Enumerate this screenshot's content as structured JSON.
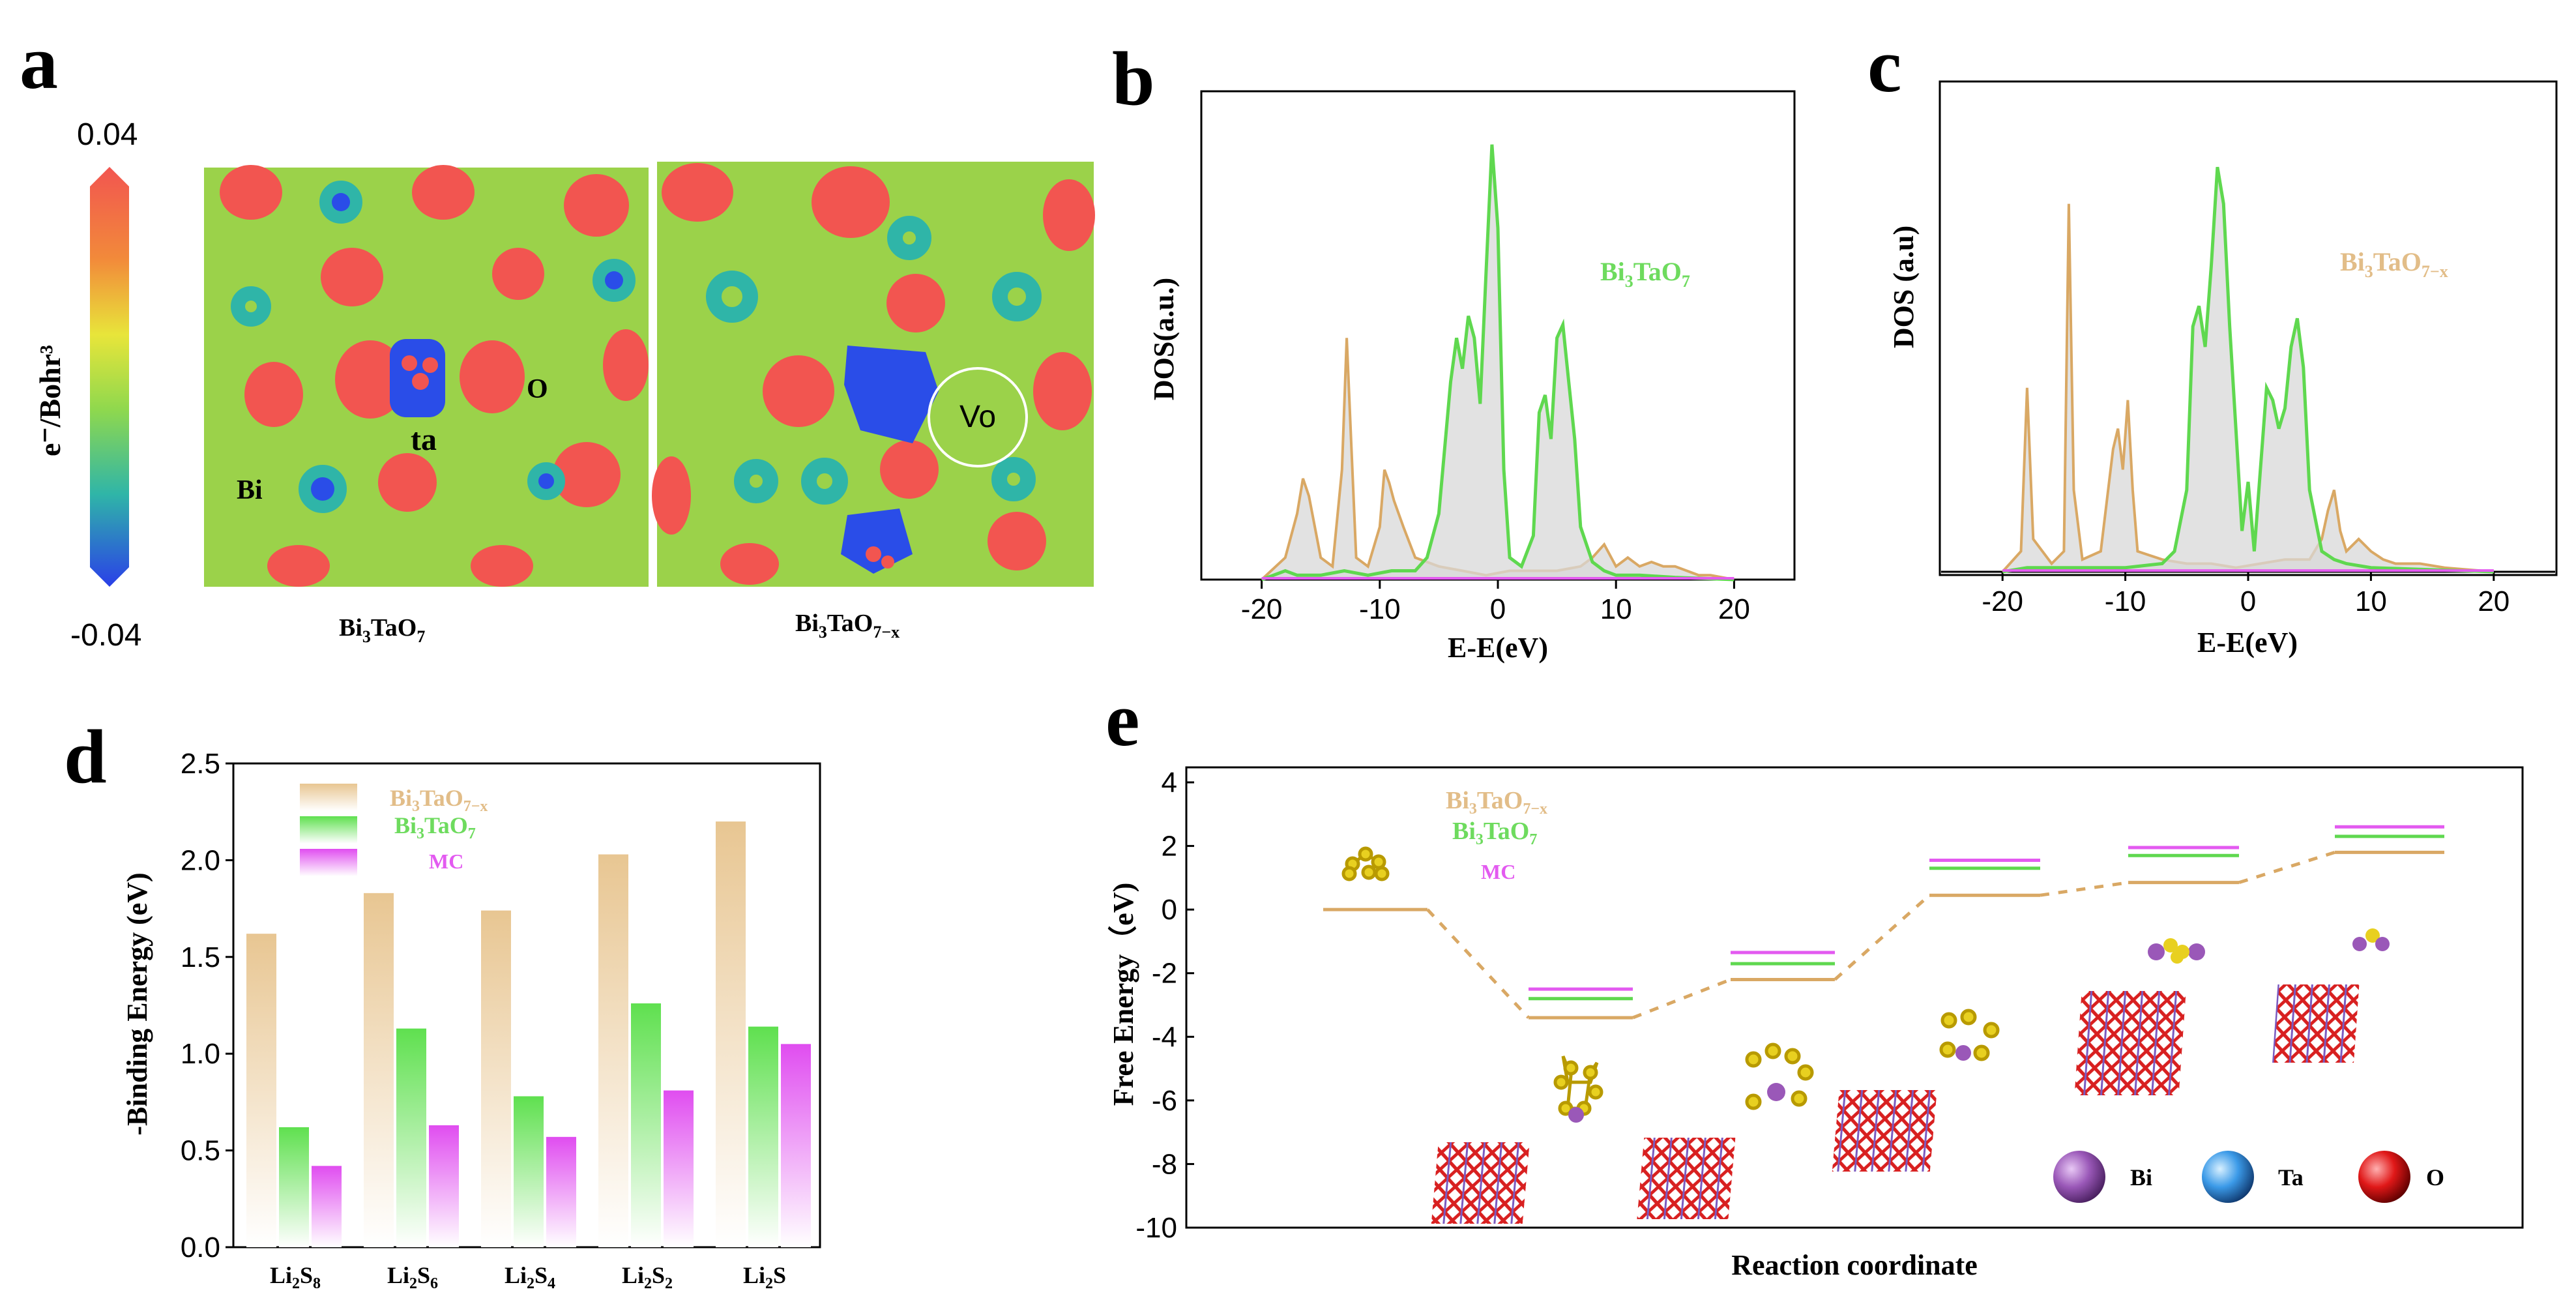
{
  "colors": {
    "tan": "#E2BD88",
    "tan_line": "#D9A864",
    "green": "#6EDB5E",
    "green_line": "#5FD84F",
    "magenta": "#E35AF0",
    "fill_gray": "#D8D8D8",
    "map_green": "#9BD24A",
    "map_red": "#F25550",
    "map_blue": "#2A4DE8",
    "bi": "#9A58B8",
    "ta": "#3B9AE8",
    "o": "#E01818"
  },
  "panel_a": {
    "label": "a",
    "cbar_max": "0.04",
    "cbar_min": "-0.04",
    "cbar_title": "e⁻/Bohr³",
    "map1_caption_main": "Bi",
    "map1_caption_sub1": "3",
    "map1_caption_mid": "TaO",
    "map1_caption_sub2": "7",
    "map2_caption_main": "Bi",
    "map2_caption_sub1": "3",
    "map2_caption_mid": "TaO",
    "map2_caption_sub2": "7−x",
    "atom_ta": "ta",
    "atom_o": "O",
    "atom_bi": "Bi",
    "vacancy": "Vo"
  },
  "chart_data": [
    {
      "panel": "b",
      "type": "line",
      "xlabel": "E-E(eV)",
      "ylabel": "DOS(a.u.)",
      "legend": "Bi3TaO7",
      "xlim": [
        -25,
        25
      ],
      "ylim": [
        0,
        1
      ],
      "xticks": [
        -20,
        -10,
        0,
        10,
        20
      ],
      "series": [
        {
          "name": "tan",
          "x": [
            -20,
            -18,
            -17,
            -16.5,
            -16,
            -15,
            -14,
            -13.2,
            -12.8,
            -12.4,
            -12,
            -11,
            -10,
            -9.6,
            -9.2,
            -8.8,
            -8,
            -7,
            -6,
            -5,
            -3,
            -1,
            1,
            3,
            5,
            7,
            8,
            9,
            10,
            11,
            12,
            13,
            14,
            15,
            16,
            17,
            18,
            20
          ],
          "y": [
            0,
            0.05,
            0.15,
            0.23,
            0.19,
            0.05,
            0.03,
            0.25,
            0.55,
            0.3,
            0.05,
            0.03,
            0.12,
            0.25,
            0.22,
            0.18,
            0.12,
            0.05,
            0.04,
            0.03,
            0.02,
            0.01,
            0.02,
            0.02,
            0.02,
            0.03,
            0.05,
            0.08,
            0.03,
            0.05,
            0.03,
            0.04,
            0.03,
            0.03,
            0.02,
            0.01,
            0.01,
            0
          ]
        },
        {
          "name": "green",
          "x": [
            -20,
            -19,
            -18,
            -17,
            -15,
            -13,
            -11,
            -9,
            -7,
            -6,
            -5,
            -4,
            -3.5,
            -3,
            -2.5,
            -2,
            -1.5,
            -1,
            -0.5,
            0,
            0.5,
            1,
            2,
            3,
            3.5,
            4,
            4.5,
            5,
            5.5,
            6,
            6.5,
            7,
            8,
            9,
            10,
            12,
            15,
            20
          ],
          "y": [
            0,
            0.01,
            0.02,
            0.01,
            0.01,
            0.02,
            0.01,
            0.02,
            0.02,
            0.05,
            0.15,
            0.45,
            0.55,
            0.48,
            0.6,
            0.55,
            0.4,
            0.7,
            0.99,
            0.8,
            0.25,
            0.05,
            0.03,
            0.1,
            0.38,
            0.42,
            0.32,
            0.55,
            0.58,
            0.45,
            0.32,
            0.12,
            0.04,
            0.02,
            0.01,
            0.01,
            0.005,
            0
          ]
        },
        {
          "name": "magenta",
          "x": [
            -20,
            20
          ],
          "y": [
            0.003,
            0.003
          ]
        }
      ]
    },
    {
      "panel": "c",
      "type": "line",
      "xlabel": "E-E(eV)",
      "ylabel": "DOS (a.u)",
      "legend": "Bi3TaO7-x",
      "xlim": [
        -25,
        25
      ],
      "ylim": [
        0,
        1
      ],
      "xticks": [
        -20,
        -10,
        0,
        10,
        20
      ],
      "series": [
        {
          "name": "tan",
          "x": [
            -20,
            -18.5,
            -18,
            -17.5,
            -16,
            -15,
            -14.6,
            -14.2,
            -13.5,
            -12,
            -11,
            -10.6,
            -10.2,
            -9.8,
            -9.4,
            -9,
            -7,
            -5,
            -3,
            -1,
            1,
            3,
            5,
            6,
            6.5,
            7,
            7.5,
            8,
            9,
            10,
            11,
            12,
            14,
            16,
            20
          ],
          "y": [
            0,
            0.05,
            0.45,
            0.08,
            0.02,
            0.05,
            0.9,
            0.2,
            0.03,
            0.05,
            0.3,
            0.35,
            0.25,
            0.42,
            0.2,
            0.05,
            0.03,
            0.02,
            0.02,
            0.01,
            0.02,
            0.03,
            0.03,
            0.08,
            0.15,
            0.2,
            0.1,
            0.05,
            0.08,
            0.05,
            0.03,
            0.02,
            0.02,
            0.01,
            0
          ]
        },
        {
          "name": "green",
          "x": [
            -20,
            -18,
            -16,
            -12,
            -10,
            -7,
            -6,
            -5,
            -4.5,
            -4,
            -3.5,
            -3,
            -2.5,
            -2,
            -1.5,
            -1,
            -0.5,
            0,
            0.5,
            1,
            1.5,
            2,
            2.5,
            3,
            3.5,
            4,
            4.5,
            5,
            6,
            7,
            8,
            10,
            15,
            20
          ],
          "y": [
            0,
            0.01,
            0.01,
            0.01,
            0.01,
            0.02,
            0.05,
            0.2,
            0.6,
            0.65,
            0.55,
            0.75,
            0.99,
            0.9,
            0.6,
            0.35,
            0.1,
            0.22,
            0.05,
            0.25,
            0.45,
            0.42,
            0.35,
            0.4,
            0.55,
            0.62,
            0.5,
            0.2,
            0.05,
            0.03,
            0.02,
            0.01,
            0.005,
            0
          ]
        },
        {
          "name": "magenta",
          "x": [
            -20,
            20
          ],
          "y": [
            0.003,
            0.003
          ]
        }
      ]
    },
    {
      "panel": "d",
      "type": "bar",
      "ylabel": "-Binding Energy (eV)",
      "ylim": [
        0,
        2.5
      ],
      "yticks": [
        "0.0",
        "0.5",
        "1.0",
        "1.5",
        "2.0",
        "2.5"
      ],
      "categories": [
        "Li2S8",
        "Li2S6",
        "Li2S4",
        "Li2S2",
        "Li2S"
      ],
      "series": [
        {
          "name": "Bi3TaO7-x",
          "values": [
            1.62,
            1.83,
            1.74,
            2.03,
            2.2
          ]
        },
        {
          "name": "Bi3TaO7",
          "values": [
            0.62,
            1.13,
            0.78,
            1.26,
            1.14
          ]
        },
        {
          "name": "MC",
          "values": [
            0.42,
            0.63,
            0.57,
            0.81,
            1.05
          ]
        }
      ],
      "legend": [
        "Bi3TaO7-x",
        "Bi3TaO7",
        "MC"
      ]
    },
    {
      "panel": "e",
      "type": "line",
      "xlabel": "Reaction coordinate",
      "ylabel": "Free Energy（eV)",
      "ylim": [
        -10,
        4
      ],
      "yticks": [
        "4",
        "2",
        "0",
        "-2",
        "-4",
        "-6",
        "-8",
        "-10"
      ],
      "steps": [
        "S8",
        "Li2S8",
        "Li2S6",
        "Li2S4",
        "Li2S2",
        "Li2S"
      ],
      "series": [
        {
          "name": "Bi3TaO7-x",
          "values": [
            0.0,
            -3.4,
            -2.2,
            0.45,
            0.85,
            1.8
          ]
        },
        {
          "name": "Bi3TaO7",
          "values": [
            null,
            -2.8,
            -1.7,
            1.3,
            1.7,
            2.3
          ]
        },
        {
          "name": "MC",
          "values": [
            null,
            -2.5,
            -1.35,
            1.55,
            1.95,
            2.6
          ]
        }
      ],
      "legend": [
        "Bi3TaO7-x",
        "Bi3TaO7",
        "MC"
      ],
      "atom_legend": [
        "Bi",
        "Ta",
        "O"
      ]
    }
  ],
  "text": {
    "b_label": "b",
    "c_label": "c",
    "d_label": "d",
    "e_label": "e",
    "bi_legend_main": "Bi",
    "sub3": "3",
    "tao": "TaO",
    "sub7": "7",
    "sub7x": "7−x",
    "mc": "MC",
    "li": "Li",
    "sub2": "2",
    "s": "S",
    "sub8": "8",
    "sub6": "6",
    "sub4": "4",
    "bi_atom": "Bi",
    "ta_atom": "Ta",
    "o_atom": "O"
  }
}
